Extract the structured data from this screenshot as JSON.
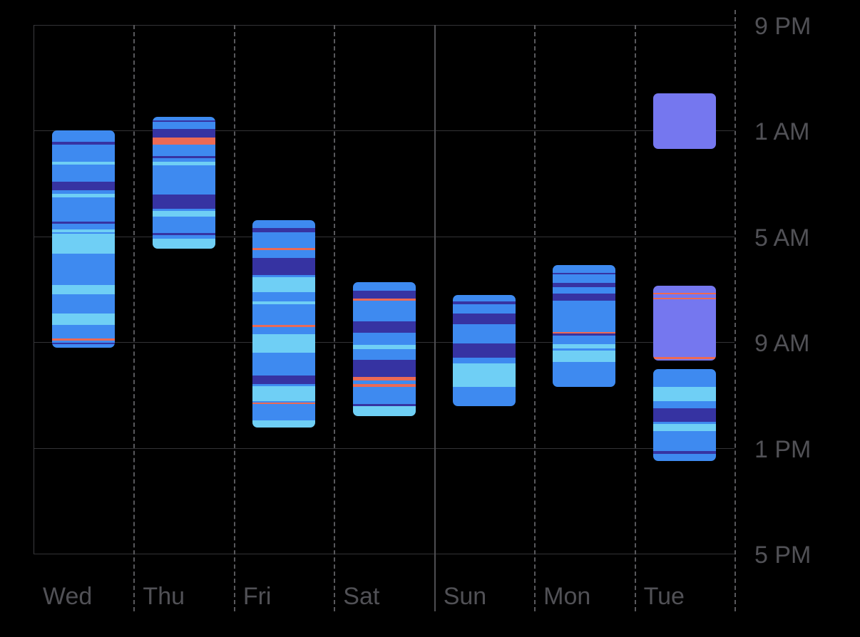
{
  "app": {
    "background": "#000000",
    "label_color": "#515156"
  },
  "grid": {
    "h_line_color": "#333336",
    "v_dashed_color": "#58585c",
    "v_solid_color": "#4e4e52",
    "left_edge_color": "#3c3c40"
  },
  "chart_data": {
    "type": "bar",
    "subtype": "daily-sleep-stage-time-blocks",
    "x_categories": [
      "Wed",
      "Thu",
      "Fri",
      "Sat",
      "Sun",
      "Mon",
      "Tue"
    ],
    "y_axis": {
      "direction": "top-to-bottom",
      "start_label": "9 PM",
      "end_label": "5 PM",
      "hours_span": 20,
      "labels": [
        {
          "text": "9 PM",
          "hours_after_start": 0
        },
        {
          "text": "1 AM",
          "hours_after_start": 4
        },
        {
          "text": "5 AM",
          "hours_after_start": 8
        },
        {
          "text": "9 AM",
          "hours_after_start": 12
        },
        {
          "text": "1 PM",
          "hours_after_start": 16
        },
        {
          "text": "5 PM",
          "hours_after_start": 20
        }
      ],
      "grid": true,
      "solid_divider_before_category": "Sun"
    },
    "stage_colors": {
      "core": "#3E8AF0",
      "rem": "#6FCFF5",
      "deep": "#3633A2",
      "awake": "#EC6A55",
      "in_bed": "#7577EF"
    },
    "days": [
      {
        "day": "Wed",
        "sessions": [
          {
            "approx_start": "1:00 AM",
            "approx_end": "9:13 AM",
            "segments": [
              [
                3.99,
                4.42,
                "core"
              ],
              [
                4.42,
                4.53,
                "deep"
              ],
              [
                4.53,
                5.18,
                "core"
              ],
              [
                5.18,
                5.28,
                "rem"
              ],
              [
                5.28,
                5.93,
                "core"
              ],
              [
                5.93,
                6.25,
                "deep"
              ],
              [
                6.25,
                6.39,
                "core"
              ],
              [
                6.39,
                6.52,
                "rem"
              ],
              [
                6.52,
                7.44,
                "core"
              ],
              [
                7.44,
                7.52,
                "deep"
              ],
              [
                7.52,
                7.74,
                "core"
              ],
              [
                7.74,
                7.84,
                "rem"
              ],
              [
                7.84,
                7.9,
                "core"
              ],
              [
                7.9,
                8.65,
                "rem"
              ],
              [
                8.65,
                9.84,
                "core"
              ],
              [
                9.84,
                10.19,
                "rem"
              ],
              [
                10.19,
                10.92,
                "core"
              ],
              [
                10.92,
                11.35,
                "rem"
              ],
              [
                11.35,
                11.86,
                "core"
              ],
              [
                11.86,
                11.94,
                "awake"
              ],
              [
                11.94,
                12.02,
                "core"
              ],
              [
                12.02,
                12.08,
                "deep"
              ],
              [
                12.08,
                12.21,
                "core"
              ]
            ]
          }
        ]
      },
      {
        "day": "Thu",
        "sessions": [
          {
            "approx_start": "12:29 AM",
            "approx_end": "5:28 AM",
            "segments": [
              [
                3.48,
                3.61,
                "core"
              ],
              [
                3.61,
                3.67,
                "deep"
              ],
              [
                3.67,
                3.94,
                "core"
              ],
              [
                3.94,
                4.26,
                "deep"
              ],
              [
                4.26,
                4.53,
                "awake"
              ],
              [
                4.53,
                4.96,
                "core"
              ],
              [
                4.96,
                5.04,
                "deep"
              ],
              [
                5.04,
                5.18,
                "core"
              ],
              [
                5.18,
                5.31,
                "rem"
              ],
              [
                5.31,
                6.41,
                "core"
              ],
              [
                6.41,
                6.95,
                "deep"
              ],
              [
                6.95,
                7.03,
                "core"
              ],
              [
                7.03,
                7.25,
                "rem"
              ],
              [
                7.25,
                7.87,
                "core"
              ],
              [
                7.87,
                7.95,
                "deep"
              ],
              [
                7.95,
                8.09,
                "core"
              ],
              [
                8.09,
                8.46,
                "rem"
              ]
            ]
          }
        ]
      },
      {
        "day": "Fri",
        "sessions": [
          {
            "approx_start": "4:23 AM",
            "approx_end": "12:14 PM",
            "segments": [
              [
                7.39,
                7.68,
                "core"
              ],
              [
                7.68,
                7.84,
                "deep"
              ],
              [
                7.84,
                8.44,
                "core"
              ],
              [
                8.44,
                8.52,
                "awake"
              ],
              [
                8.52,
                8.81,
                "core"
              ],
              [
                8.81,
                9.46,
                "deep"
              ],
              [
                9.46,
                9.54,
                "core"
              ],
              [
                9.54,
                10.11,
                "rem"
              ],
              [
                10.11,
                10.46,
                "core"
              ],
              [
                10.46,
                10.57,
                "rem"
              ],
              [
                10.57,
                11.35,
                "core"
              ],
              [
                11.35,
                11.43,
                "awake"
              ],
              [
                11.43,
                11.7,
                "core"
              ],
              [
                11.7,
                12.4,
                "rem"
              ],
              [
                12.4,
                13.26,
                "core"
              ],
              [
                13.26,
                13.58,
                "deep"
              ],
              [
                13.58,
                13.67,
                "core"
              ],
              [
                13.67,
                14.23,
                "rem"
              ],
              [
                14.23,
                14.29,
                "core"
              ],
              [
                14.29,
                14.34,
                "awake"
              ],
              [
                14.34,
                14.96,
                "core"
              ],
              [
                14.96,
                15.23,
                "rem"
              ]
            ]
          }
        ]
      },
      {
        "day": "Sat",
        "sessions": [
          {
            "approx_start": "6:44 AM",
            "approx_end": "11:48 AM",
            "segments": [
              [
                9.73,
                10.05,
                "core"
              ],
              [
                10.05,
                10.35,
                "deep"
              ],
              [
                10.35,
                10.43,
                "awake"
              ],
              [
                10.43,
                11.21,
                "core"
              ],
              [
                11.21,
                11.64,
                "deep"
              ],
              [
                11.64,
                12.1,
                "core"
              ],
              [
                12.1,
                12.26,
                "rem"
              ],
              [
                12.26,
                12.67,
                "core"
              ],
              [
                12.67,
                13.31,
                "deep"
              ],
              [
                13.31,
                13.45,
                "awake"
              ],
              [
                13.45,
                13.58,
                "core"
              ],
              [
                13.58,
                13.69,
                "awake"
              ],
              [
                13.69,
                14.34,
                "core"
              ],
              [
                14.34,
                14.42,
                "deep"
              ],
              [
                14.42,
                14.8,
                "rem"
              ]
            ]
          }
        ]
      },
      {
        "day": "Sun",
        "sessions": [
          {
            "approx_start": "7:13 AM",
            "approx_end": "11:25 AM",
            "segments": [
              [
                10.22,
                10.46,
                "core"
              ],
              [
                10.46,
                10.57,
                "deep"
              ],
              [
                10.57,
                10.92,
                "core"
              ],
              [
                10.92,
                11.32,
                "deep"
              ],
              [
                11.32,
                12.05,
                "core"
              ],
              [
                12.05,
                12.59,
                "deep"
              ],
              [
                12.59,
                12.8,
                "core"
              ],
              [
                12.8,
                13.69,
                "rem"
              ],
              [
                13.69,
                14.42,
                "core"
              ]
            ]
          }
        ]
      },
      {
        "day": "Mon",
        "sessions": [
          {
            "approx_start": "6:05 AM",
            "approx_end": "10:41 AM",
            "segments": [
              [
                9.08,
                9.38,
                "core"
              ],
              [
                9.38,
                9.43,
                "deep"
              ],
              [
                9.43,
                9.76,
                "core"
              ],
              [
                9.76,
                9.92,
                "deep"
              ],
              [
                9.92,
                10.16,
                "core"
              ],
              [
                10.16,
                10.43,
                "deep"
              ],
              [
                10.43,
                11.62,
                "core"
              ],
              [
                11.62,
                11.67,
                "awake"
              ],
              [
                11.67,
                11.75,
                "deep"
              ],
              [
                11.75,
                12.08,
                "core"
              ],
              [
                12.08,
                12.24,
                "rem"
              ],
              [
                12.24,
                12.32,
                "core"
              ],
              [
                12.32,
                12.75,
                "rem"
              ],
              [
                12.75,
                13.69,
                "core"
              ]
            ]
          }
        ]
      },
      {
        "day": "Tue",
        "sessions": [
          {
            "approx_start": "11:35 PM",
            "approx_end": "1:41 AM",
            "segments": [
              [
                2.59,
                4.69,
                "in_bed"
              ]
            ]
          },
          {
            "approx_start": "6:52 AM",
            "approx_end": "9:42 AM",
            "segments": [
              [
                9.87,
                10.13,
                "in_bed"
              ],
              [
                10.13,
                10.19,
                "awake"
              ],
              [
                10.19,
                10.32,
                "in_bed"
              ],
              [
                10.32,
                10.38,
                "awake"
              ],
              [
                10.38,
                12.56,
                "in_bed"
              ],
              [
                12.56,
                12.64,
                "awake"
              ],
              [
                12.64,
                12.7,
                "in_bed"
              ]
            ]
          },
          {
            "approx_start": "10:01 AM",
            "approx_end": "1:30 PM",
            "segments": [
              [
                13.02,
                13.69,
                "core"
              ],
              [
                13.69,
                14.23,
                "rem"
              ],
              [
                14.23,
                14.5,
                "core"
              ],
              [
                14.5,
                15.01,
                "deep"
              ],
              [
                15.01,
                15.09,
                "core"
              ],
              [
                15.09,
                15.36,
                "rem"
              ],
              [
                15.36,
                16.12,
                "core"
              ],
              [
                16.12,
                16.23,
                "deep"
              ],
              [
                16.23,
                16.5,
                "core"
              ]
            ]
          }
        ]
      }
    ]
  }
}
